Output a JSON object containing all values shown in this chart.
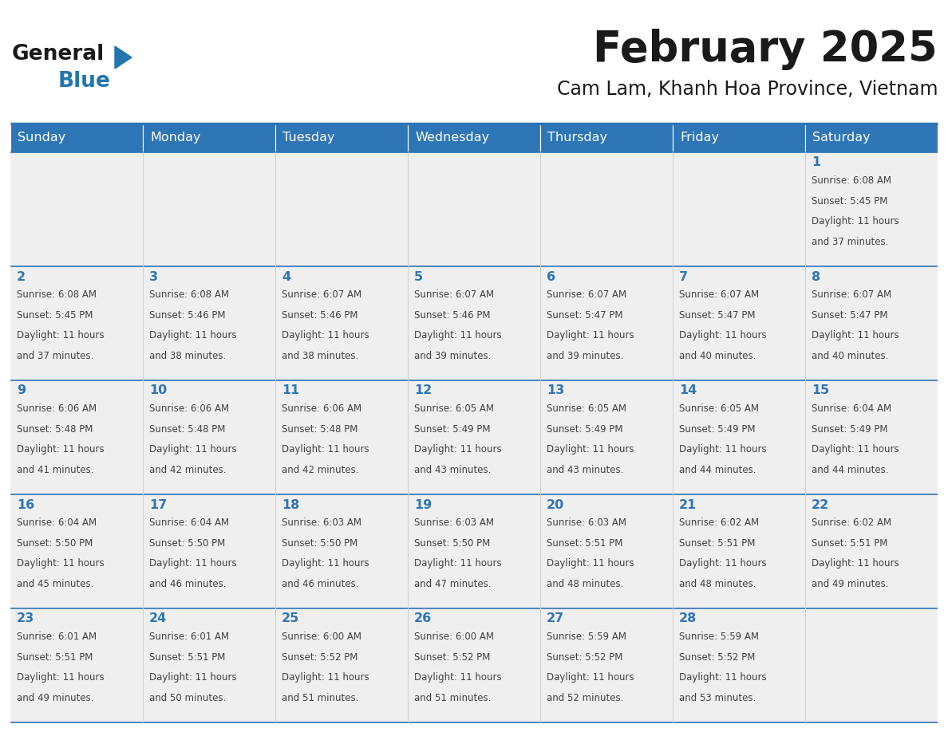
{
  "title": "February 2025",
  "subtitle": "Cam Lam, Khanh Hoa Province, Vietnam",
  "header_bg": "#2E75B6",
  "header_text": "#FFFFFF",
  "cell_bg": "#EFEFEF",
  "day_headers": [
    "Sunday",
    "Monday",
    "Tuesday",
    "Wednesday",
    "Thursday",
    "Friday",
    "Saturday"
  ],
  "title_color": "#1a1a1a",
  "subtitle_color": "#1a1a1a",
  "line_color": "#2E75B6",
  "number_color": "#2E75B6",
  "text_color": "#404040",
  "days": [
    {
      "day": 1,
      "col": 6,
      "row": 0,
      "sunrise": "6:08 AM",
      "sunset": "5:45 PM",
      "daylight_suffix": "37 minutes."
    },
    {
      "day": 2,
      "col": 0,
      "row": 1,
      "sunrise": "6:08 AM",
      "sunset": "5:45 PM",
      "daylight_suffix": "37 minutes."
    },
    {
      "day": 3,
      "col": 1,
      "row": 1,
      "sunrise": "6:08 AM",
      "sunset": "5:46 PM",
      "daylight_suffix": "38 minutes."
    },
    {
      "day": 4,
      "col": 2,
      "row": 1,
      "sunrise": "6:07 AM",
      "sunset": "5:46 PM",
      "daylight_suffix": "38 minutes."
    },
    {
      "day": 5,
      "col": 3,
      "row": 1,
      "sunrise": "6:07 AM",
      "sunset": "5:46 PM",
      "daylight_suffix": "39 minutes."
    },
    {
      "day": 6,
      "col": 4,
      "row": 1,
      "sunrise": "6:07 AM",
      "sunset": "5:47 PM",
      "daylight_suffix": "39 minutes."
    },
    {
      "day": 7,
      "col": 5,
      "row": 1,
      "sunrise": "6:07 AM",
      "sunset": "5:47 PM",
      "daylight_suffix": "40 minutes."
    },
    {
      "day": 8,
      "col": 6,
      "row": 1,
      "sunrise": "6:07 AM",
      "sunset": "5:47 PM",
      "daylight_suffix": "40 minutes."
    },
    {
      "day": 9,
      "col": 0,
      "row": 2,
      "sunrise": "6:06 AM",
      "sunset": "5:48 PM",
      "daylight_suffix": "41 minutes."
    },
    {
      "day": 10,
      "col": 1,
      "row": 2,
      "sunrise": "6:06 AM",
      "sunset": "5:48 PM",
      "daylight_suffix": "42 minutes."
    },
    {
      "day": 11,
      "col": 2,
      "row": 2,
      "sunrise": "6:06 AM",
      "sunset": "5:48 PM",
      "daylight_suffix": "42 minutes."
    },
    {
      "day": 12,
      "col": 3,
      "row": 2,
      "sunrise": "6:05 AM",
      "sunset": "5:49 PM",
      "daylight_suffix": "43 minutes."
    },
    {
      "day": 13,
      "col": 4,
      "row": 2,
      "sunrise": "6:05 AM",
      "sunset": "5:49 PM",
      "daylight_suffix": "43 minutes."
    },
    {
      "day": 14,
      "col": 5,
      "row": 2,
      "sunrise": "6:05 AM",
      "sunset": "5:49 PM",
      "daylight_suffix": "44 minutes."
    },
    {
      "day": 15,
      "col": 6,
      "row": 2,
      "sunrise": "6:04 AM",
      "sunset": "5:49 PM",
      "daylight_suffix": "44 minutes."
    },
    {
      "day": 16,
      "col": 0,
      "row": 3,
      "sunrise": "6:04 AM",
      "sunset": "5:50 PM",
      "daylight_suffix": "45 minutes."
    },
    {
      "day": 17,
      "col": 1,
      "row": 3,
      "sunrise": "6:04 AM",
      "sunset": "5:50 PM",
      "daylight_suffix": "46 minutes."
    },
    {
      "day": 18,
      "col": 2,
      "row": 3,
      "sunrise": "6:03 AM",
      "sunset": "5:50 PM",
      "daylight_suffix": "46 minutes."
    },
    {
      "day": 19,
      "col": 3,
      "row": 3,
      "sunrise": "6:03 AM",
      "sunset": "5:50 PM",
      "daylight_suffix": "47 minutes."
    },
    {
      "day": 20,
      "col": 4,
      "row": 3,
      "sunrise": "6:03 AM",
      "sunset": "5:51 PM",
      "daylight_suffix": "48 minutes."
    },
    {
      "day": 21,
      "col": 5,
      "row": 3,
      "sunrise": "6:02 AM",
      "sunset": "5:51 PM",
      "daylight_suffix": "48 minutes."
    },
    {
      "day": 22,
      "col": 6,
      "row": 3,
      "sunrise": "6:02 AM",
      "sunset": "5:51 PM",
      "daylight_suffix": "49 minutes."
    },
    {
      "day": 23,
      "col": 0,
      "row": 4,
      "sunrise": "6:01 AM",
      "sunset": "5:51 PM",
      "daylight_suffix": "49 minutes."
    },
    {
      "day": 24,
      "col": 1,
      "row": 4,
      "sunrise": "6:01 AM",
      "sunset": "5:51 PM",
      "daylight_suffix": "50 minutes."
    },
    {
      "day": 25,
      "col": 2,
      "row": 4,
      "sunrise": "6:00 AM",
      "sunset": "5:52 PM",
      "daylight_suffix": "51 minutes."
    },
    {
      "day": 26,
      "col": 3,
      "row": 4,
      "sunrise": "6:00 AM",
      "sunset": "5:52 PM",
      "daylight_suffix": "51 minutes."
    },
    {
      "day": 27,
      "col": 4,
      "row": 4,
      "sunrise": "5:59 AM",
      "sunset": "5:52 PM",
      "daylight_suffix": "52 minutes."
    },
    {
      "day": 28,
      "col": 5,
      "row": 4,
      "sunrise": "5:59 AM",
      "sunset": "5:52 PM",
      "daylight_suffix": "53 minutes."
    }
  ]
}
